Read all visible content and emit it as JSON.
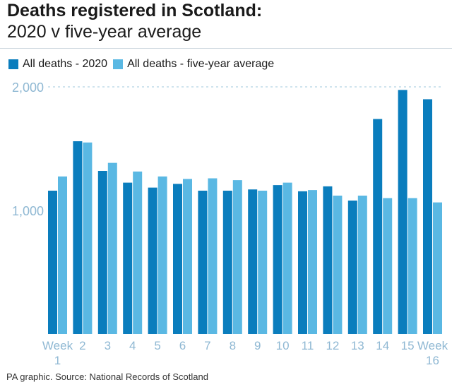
{
  "header": {
    "title": "Deaths registered in Scotland:",
    "subtitle": "2020 v five-year average"
  },
  "colors": {
    "series_2020": "#0a7dbd",
    "series_avg": "#5ab8e3",
    "gridline": "#9fc8de",
    "tick_label": "#8fb8d3"
  },
  "source": "PA graphic. Source: National Records of Scotland",
  "chart_data": {
    "type": "bar",
    "categories": [
      "Week 1",
      "2",
      "3",
      "4",
      "5",
      "6",
      "7",
      "8",
      "9",
      "10",
      "11",
      "12",
      "13",
      "14",
      "15",
      "Week 16"
    ],
    "series": [
      {
        "name": "All deaths - 2020",
        "values": [
          1160,
          1560,
          1320,
          1225,
          1185,
          1215,
          1160,
          1160,
          1170,
          1205,
          1155,
          1195,
          1080,
          1740,
          1975,
          1900
        ]
      },
      {
        "name": "All deaths - five-year average",
        "values": [
          1275,
          1550,
          1385,
          1315,
          1275,
          1255,
          1260,
          1245,
          1160,
          1225,
          1165,
          1120,
          1120,
          1100,
          1100,
          1065
        ]
      }
    ],
    "yticks": [
      1000,
      2000
    ],
    "ytick_labels": [
      "1,000",
      "2,000"
    ],
    "ylim": [
      0,
      2000
    ],
    "grid": "dashed line at 2,000",
    "legend": "top-left"
  }
}
